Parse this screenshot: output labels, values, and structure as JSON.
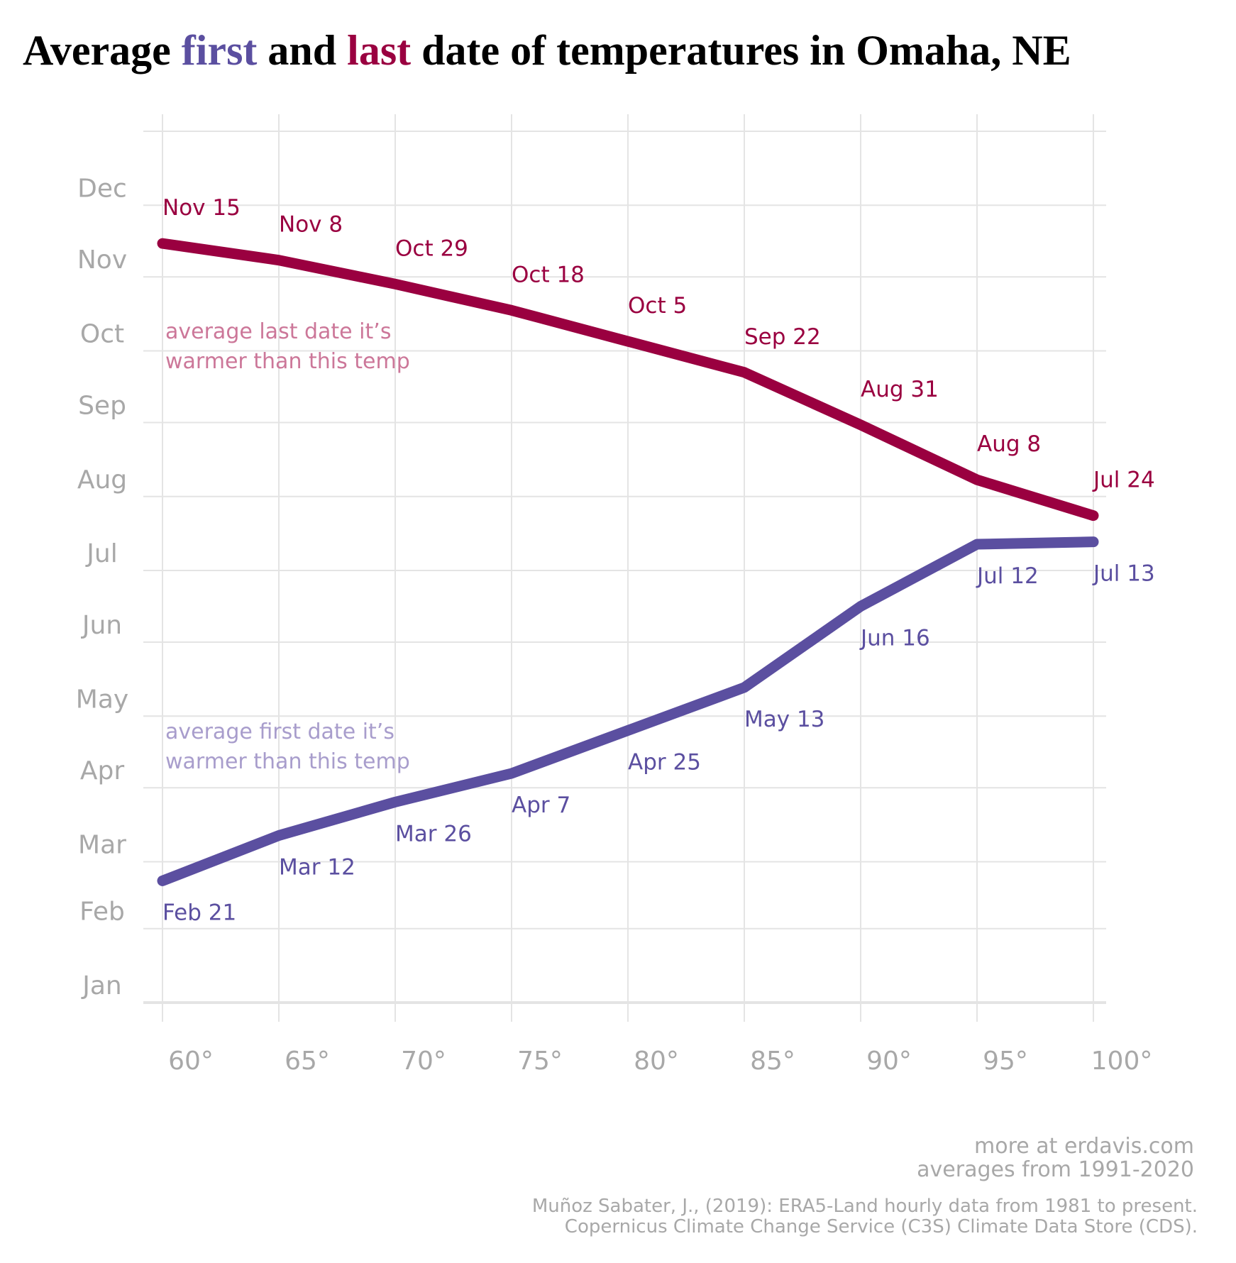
{
  "title": {
    "segments": [
      {
        "text": "Average ",
        "color": "#000000"
      },
      {
        "text": "first",
        "color": "#5b4fa0"
      },
      {
        "text": " and ",
        "color": "#000000"
      },
      {
        "text": "last",
        "color": "#9a0040"
      },
      {
        "text": " date of temperatures in Omaha, NE",
        "color": "#000000"
      }
    ]
  },
  "footer": {
    "line1": "more at erdavis.com",
    "line2": "averages from 1991-2020",
    "citation1": "Muñoz Sabater, J., (2019): ERA5-Land hourly data from 1981 to present.",
    "citation2": "Copernicus Climate Change Service (C3S) Climate Data Store (CDS)."
  },
  "chart_data": {
    "type": "line",
    "title": "Average first and last date of temperatures in Omaha, NE",
    "xlabel": "",
    "ylabel": "",
    "x": [
      60,
      65,
      70,
      75,
      80,
      85,
      90,
      95,
      100
    ],
    "x_tick_labels": [
      "60°",
      "65°",
      "70°",
      "75°",
      "80°",
      "85°",
      "90°",
      "95°",
      "100°"
    ],
    "xlim": [
      60,
      100
    ],
    "y_tick_labels": [
      "Jan",
      "Feb",
      "Mar",
      "Apr",
      "May",
      "Jun",
      "Jul",
      "Aug",
      "Sep",
      "Oct",
      "Nov",
      "Dec"
    ],
    "y_unit": "day of year (Jan 1 = 0)",
    "ylim": [
      0,
      365
    ],
    "grid": true,
    "series": [
      {
        "name": "average last date it's warmer than this temp",
        "color": "#9a0040",
        "annotation_color": "#cc7799",
        "label_position": "above",
        "labels": [
          "Nov 15",
          "Nov 8",
          "Oct 29",
          "Oct 18",
          "Oct 5",
          "Sep 22",
          "Aug 31",
          "Aug 8",
          "Jul 24"
        ],
        "values": [
          318,
          311,
          301,
          290,
          277,
          264,
          242,
          219,
          204
        ]
      },
      {
        "name": "average first date it's warmer than this temp",
        "color": "#5b4fa0",
        "annotation_color": "#a89dcc",
        "label_position": "below",
        "labels": [
          "Feb 21",
          "Mar 12",
          "Mar 26",
          "Apr 7",
          "Apr 25",
          "May 13",
          "Jun 16",
          "Jul 12",
          "Jul 13"
        ],
        "values": [
          51,
          70,
          84,
          96,
          114,
          132,
          166,
          192,
          193
        ]
      }
    ],
    "annotations": [
      {
        "series": 0,
        "lines": [
          "average last date it’s",
          "warmer than this temp"
        ]
      },
      {
        "series": 1,
        "lines": [
          "average first date it’s",
          "warmer than this temp"
        ]
      }
    ]
  }
}
